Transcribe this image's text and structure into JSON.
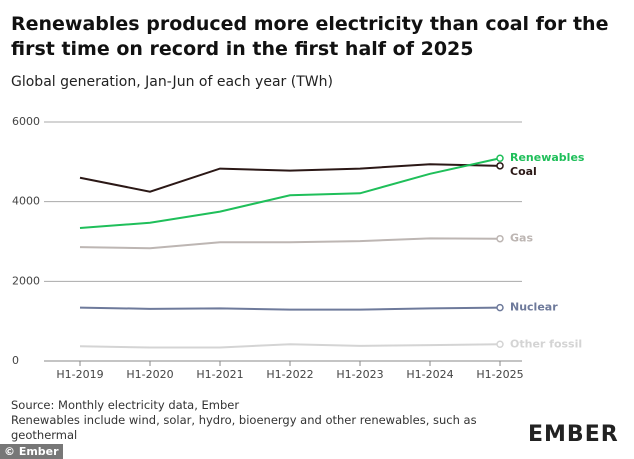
{
  "chart_data": {
    "type": "line",
    "title": "Renewables produced more electricity than coal for the first time on record in the first half of 2025",
    "subtitle": "Global generation, Jan-Jun of each year (TWh)",
    "categories": [
      "H1-2019",
      "H1-2020",
      "H1-2021",
      "H1-2022",
      "H1-2023",
      "H1-2024",
      "H1-2025"
    ],
    "series": [
      {
        "name": "Renewables",
        "color": "#1fbf5a",
        "values": [
          3340,
          3470,
          3750,
          4160,
          4210,
          4700,
          5090
        ]
      },
      {
        "name": "Coal",
        "color": "#2b1816",
        "values": [
          4600,
          4250,
          4830,
          4780,
          4830,
          4940,
          4900
        ]
      },
      {
        "name": "Gas",
        "color": "#bdb6b3",
        "values": [
          2860,
          2830,
          2980,
          2980,
          3010,
          3080,
          3070
        ]
      },
      {
        "name": "Nuclear",
        "color": "#6e7a9b",
        "values": [
          1340,
          1310,
          1320,
          1290,
          1290,
          1320,
          1340
        ]
      },
      {
        "name": "Other fossil",
        "color": "#d4d4d4",
        "values": [
          370,
          340,
          340,
          420,
          380,
          400,
          420
        ]
      }
    ],
    "ylim": [
      0,
      6000
    ],
    "yticks": [
      0,
      2000,
      4000,
      6000
    ],
    "grid": true,
    "source": "Source: Monthly electricity data, Ember",
    "note": "Renewables include wind, solar, hydro, bioenergy and other renewables, such as geothermal",
    "logo": "EMBER",
    "credit": "© Ember"
  }
}
